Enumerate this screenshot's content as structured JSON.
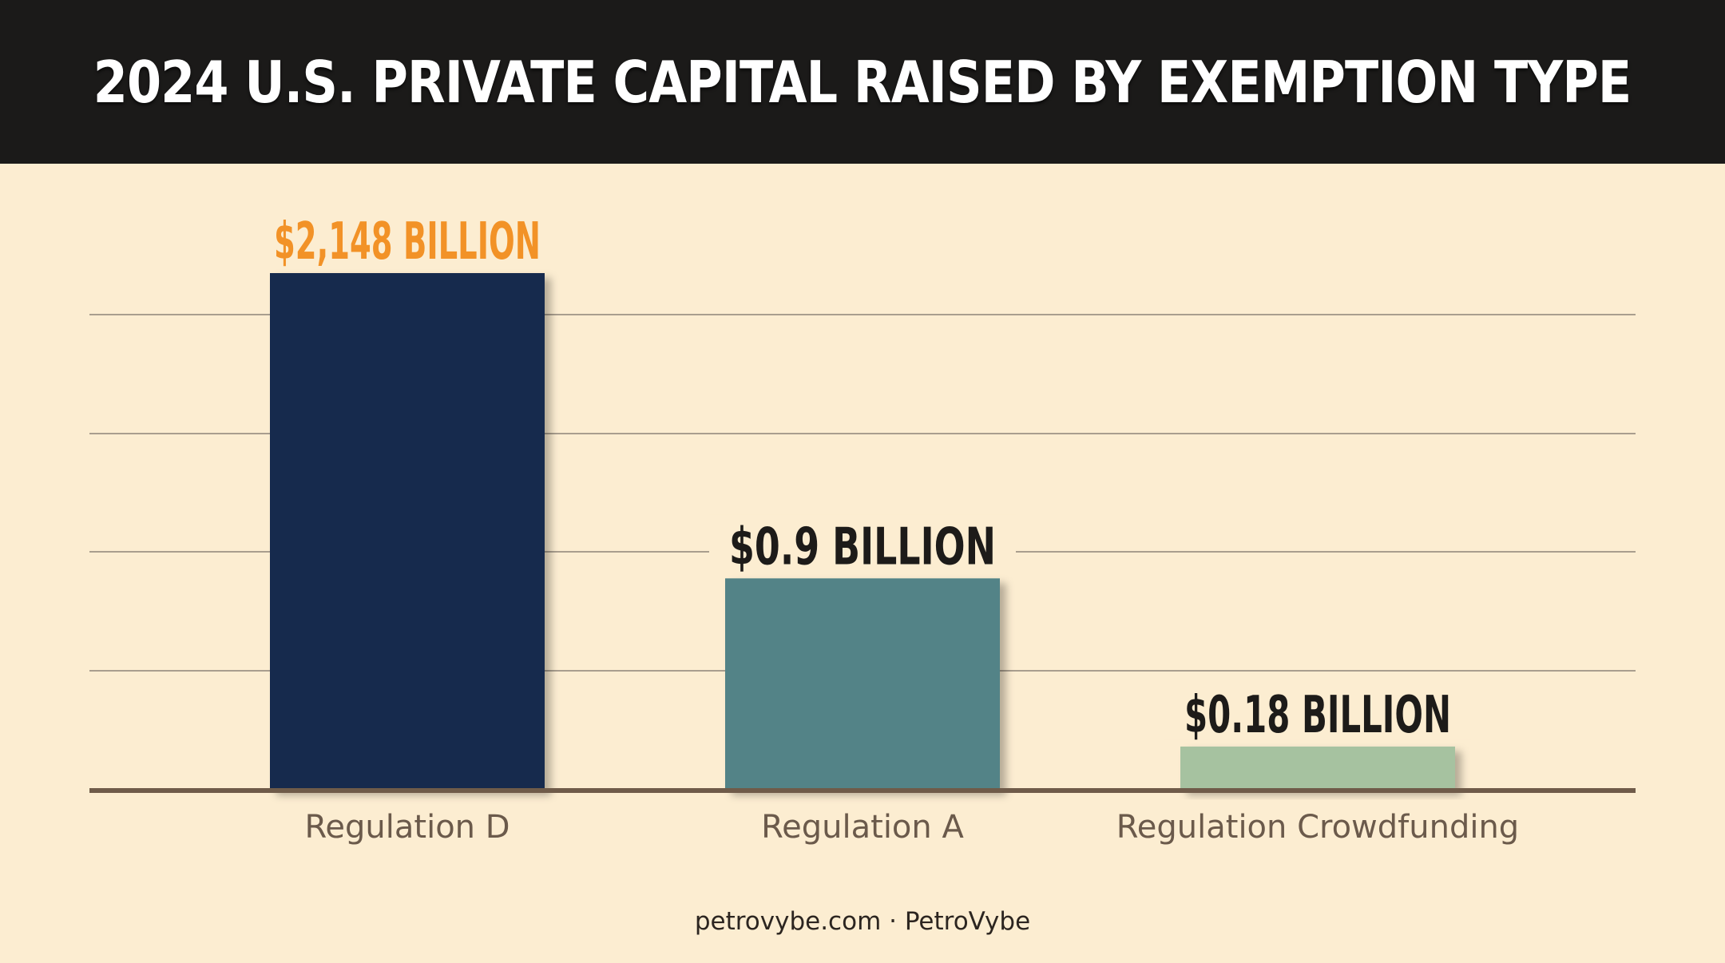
{
  "colors": {
    "background": "#fcedd1",
    "title_bar": "#1b1a19",
    "title_text": "#ffffff",
    "gridline": "#8d8478",
    "axis": "#6f5b49",
    "category_text": "#6b5a4b",
    "highlight_label": "#f29227",
    "default_label": "#1d1b19"
  },
  "chart_data": {
    "type": "bar",
    "title": "2024 U.S. PRIVATE CAPITAL RAISED BY EXEMPTION TYPE",
    "categories": [
      "Regulation D",
      "Regulation A",
      "Regulation Crowdfunding"
    ],
    "values": [
      2148,
      0.9,
      0.18
    ],
    "value_labels": [
      "$2,148 BILLION",
      "$0.9 BILLION",
      "$0.18 BILLION"
    ],
    "bar_colors": [
      "#172b4d",
      "#528387",
      "#a6c2a0"
    ],
    "label_colors": [
      "#f29227",
      "#1d1b19",
      "#1d1b19"
    ],
    "units": "billion USD",
    "y_scale": "non-linear (bars not proportional to values)",
    "relative_bar_height": [
      1.0,
      0.41,
      0.085
    ],
    "gridlines": 4,
    "grid": true,
    "legend": "none",
    "xlabel": "",
    "ylabel": ""
  },
  "footer": {
    "text": "petrovybe.com · PetroVybe"
  }
}
